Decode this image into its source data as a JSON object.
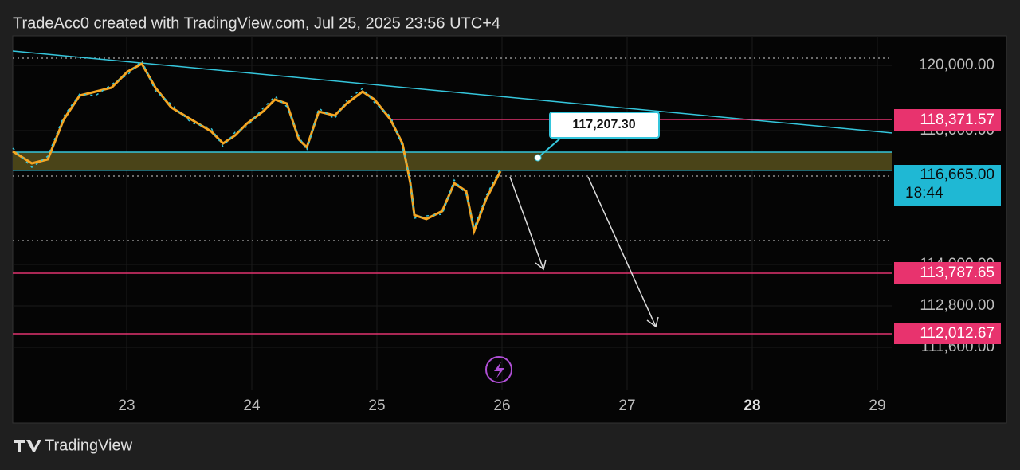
{
  "header": {
    "title": "TradeAcc0 created with TradingView.com, Jul 25, 2025 23:56 UTC+4"
  },
  "price_axis": {
    "labels": [
      "120,000.00",
      "118,000.00",
      "114,000.00",
      "112,800.00",
      "111,600.00"
    ]
  },
  "levels": [
    {
      "label": "118,371.57"
    },
    {
      "label": "116,665.00",
      "countdown": "18:44"
    },
    {
      "label": "113,787.65"
    },
    {
      "label": "112,012.67"
    }
  ],
  "callout": {
    "label": "117,207.30"
  },
  "time_axis": {
    "labels": [
      "23",
      "24",
      "25",
      "26",
      "27",
      "28",
      "29"
    ]
  },
  "footer": {
    "brand": "TradingView"
  }
}
